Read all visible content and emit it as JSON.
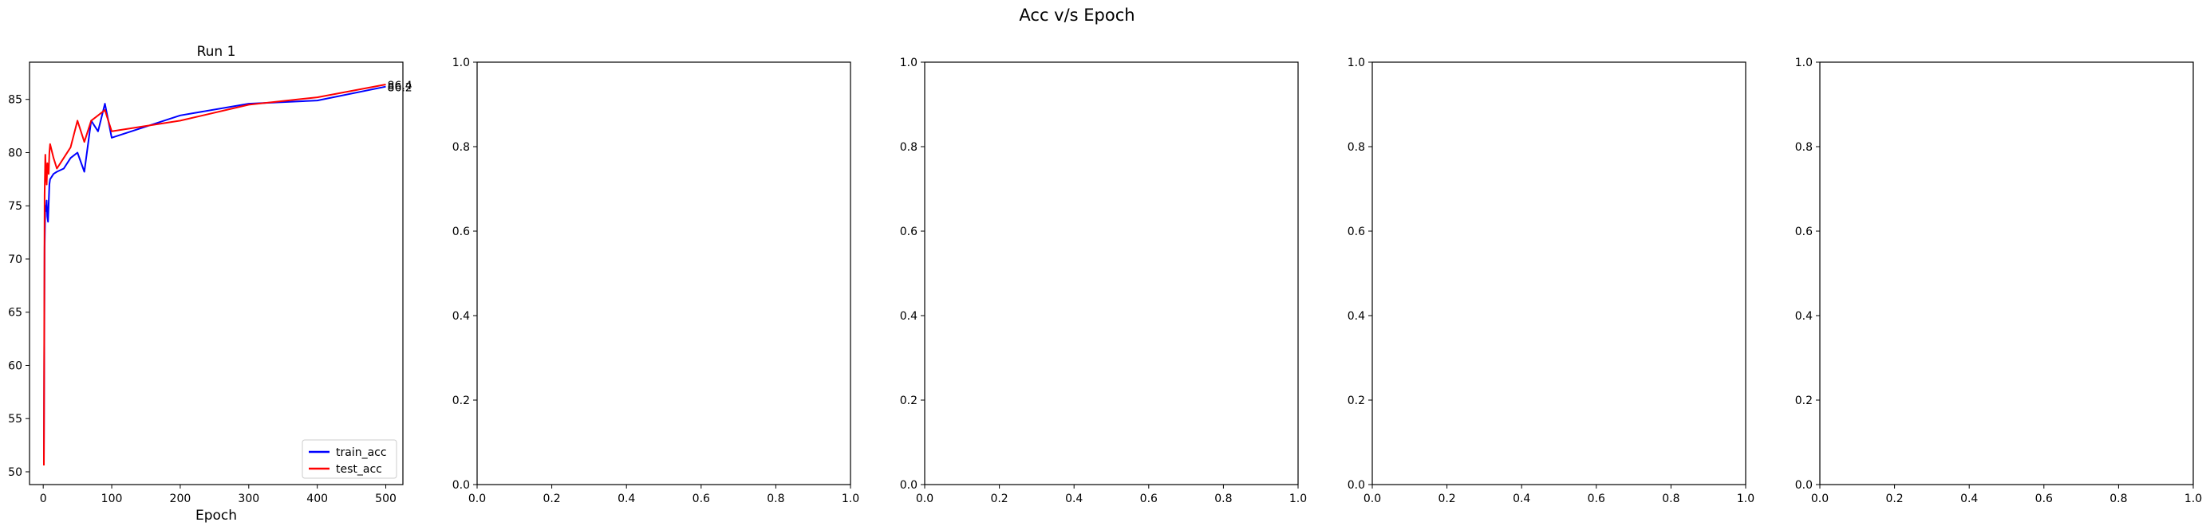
{
  "figure": {
    "suptitle": "Acc v/s Epoch"
  },
  "chart_data": [
    {
      "type": "line",
      "title": "Run 1",
      "xlabel": "Epoch",
      "ylabel": "",
      "xlim": [
        -20,
        525
      ],
      "ylim": [
        48.8,
        88.5
      ],
      "xticks": [
        0,
        100,
        200,
        300,
        400,
        500
      ],
      "yticks": [
        50,
        55,
        60,
        65,
        70,
        75,
        80,
        85
      ],
      "grid": false,
      "legend_position": "lower right",
      "series": [
        {
          "name": "train_acc",
          "color": "#0000ff",
          "x": [
            1,
            2,
            3,
            4,
            5,
            6,
            7,
            8,
            9,
            10,
            15,
            20,
            30,
            40,
            50,
            60,
            70,
            80,
            90,
            100,
            200,
            300,
            400,
            500
          ],
          "y": [
            50.6,
            71.0,
            75.0,
            74.5,
            75.5,
            74.0,
            73.5,
            75.2,
            77.0,
            77.5,
            78.0,
            78.2,
            78.5,
            79.5,
            80.0,
            78.2,
            83.0,
            82.0,
            84.6,
            81.4,
            83.5,
            84.6,
            84.9,
            86.2
          ]
        },
        {
          "name": "test_acc",
          "color": "#ff0000",
          "x": [
            1,
            2,
            3,
            4,
            5,
            6,
            7,
            8,
            9,
            10,
            15,
            20,
            30,
            40,
            50,
            60,
            70,
            80,
            90,
            100,
            200,
            300,
            400,
            500
          ],
          "y": [
            50.6,
            76.0,
            79.8,
            78.0,
            77.0,
            79.0,
            78.8,
            78.0,
            80.0,
            80.8,
            79.5,
            78.5,
            79.5,
            80.5,
            83.0,
            81.0,
            83.0,
            83.5,
            84.0,
            82.0,
            83.0,
            84.5,
            85.2,
            86.4
          ]
        }
      ],
      "end_labels": [
        "86.2",
        "86.4"
      ]
    },
    {
      "type": "line",
      "empty": true,
      "xlim": [
        0,
        1
      ],
      "ylim": [
        0,
        1
      ],
      "ticks": [
        "0.0",
        "0.2",
        "0.4",
        "0.6",
        "0.8",
        "1.0"
      ]
    },
    {
      "type": "line",
      "empty": true,
      "xlim": [
        0,
        1
      ],
      "ylim": [
        0,
        1
      ],
      "ticks": [
        "0.0",
        "0.2",
        "0.4",
        "0.6",
        "0.8",
        "1.0"
      ]
    },
    {
      "type": "line",
      "empty": true,
      "xlim": [
        0,
        1
      ],
      "ylim": [
        0,
        1
      ],
      "ticks": [
        "0.0",
        "0.2",
        "0.4",
        "0.6",
        "0.8",
        "1.0"
      ]
    },
    {
      "type": "line",
      "empty": true,
      "xlim": [
        0,
        1
      ],
      "ylim": [
        0,
        1
      ],
      "ticks": [
        "0.0",
        "0.2",
        "0.4",
        "0.6",
        "0.8",
        "1.0"
      ]
    }
  ]
}
